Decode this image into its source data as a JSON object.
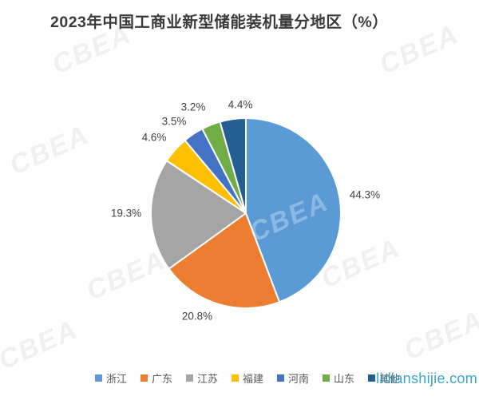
{
  "title": "2023年中国工商业新型储能装机量分地区（%）",
  "watermark": {
    "brand": "CBEA",
    "site": "lidianshijie.com"
  },
  "chart_data": {
    "type": "pie",
    "title": "2023年中国工商业新型储能装机量分地区（%）",
    "categories": [
      "浙江",
      "广东",
      "江苏",
      "福建",
      "河南",
      "山东",
      "其他"
    ],
    "values": [
      44.3,
      20.8,
      19.3,
      4.6,
      3.5,
      3.2,
      4.4
    ],
    "labels": [
      "44.3%",
      "20.8%",
      "19.3%",
      "4.6%",
      "3.5%",
      "3.2%",
      "4.4%"
    ],
    "unit": "%",
    "colors": [
      "#5B9BD5",
      "#ED7D31",
      "#A5A5A5",
      "#FFC000",
      "#4472C4",
      "#70AD47",
      "#255E91"
    ],
    "legend_position": "bottom",
    "start_angle_deg": 0,
    "direction": "clockwise"
  }
}
